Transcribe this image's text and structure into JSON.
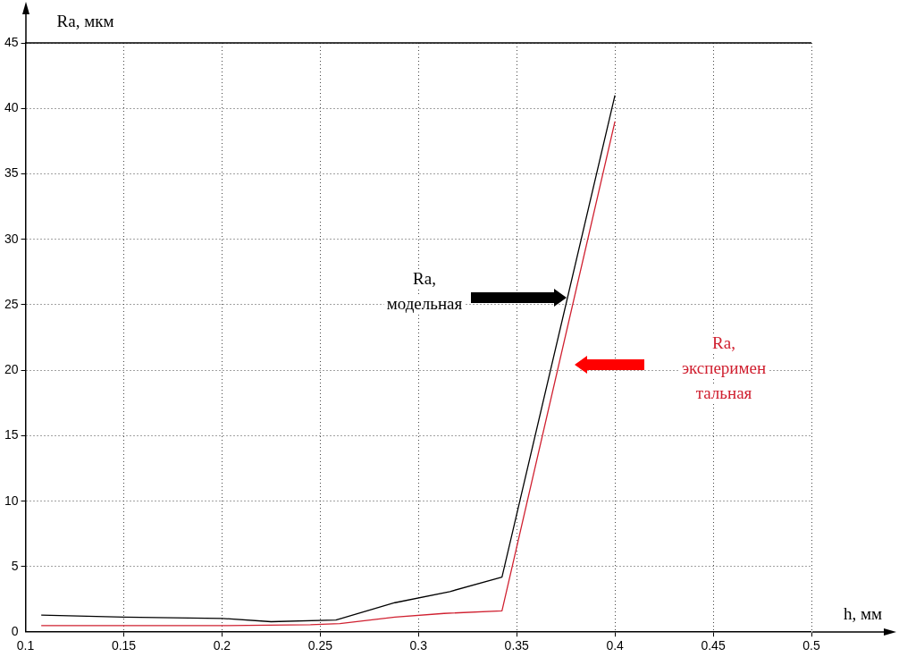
{
  "chart_data": {
    "type": "line",
    "xlabel": "h, мм",
    "ylabel": "Ra, мкм",
    "xlim": [
      0.1,
      0.5
    ],
    "xticks": [
      0.1,
      0.15,
      0.2,
      0.25,
      0.3,
      0.35,
      0.4,
      0.45,
      0.5
    ],
    "ylim": [
      0,
      45
    ],
    "yticks": [
      0,
      5,
      10,
      15,
      20,
      25,
      30,
      35,
      40,
      45
    ],
    "grid": true,
    "legend": false,
    "marker": "none",
    "line_style": "solid",
    "series": [
      {
        "name": "Ra,\nмодельная",
        "color": "#000000",
        "x": [
          0.108,
          0.15,
          0.2,
          0.225,
          0.258,
          0.288,
          0.316,
          0.3425,
          0.4
        ],
        "values": [
          1.3,
          1.15,
          1.05,
          0.8,
          0.93,
          2.25,
          3.1,
          4.2,
          41
        ]
      },
      {
        "name": "Ra,\nэксперимен\nтальная",
        "color": "#d02030",
        "x": [
          0.108,
          0.2,
          0.245,
          0.26,
          0.288,
          0.313,
          0.3425,
          0.4
        ],
        "values": [
          0.5,
          0.5,
          0.57,
          0.65,
          1.15,
          1.43,
          1.63,
          39
        ]
      }
    ]
  }
}
